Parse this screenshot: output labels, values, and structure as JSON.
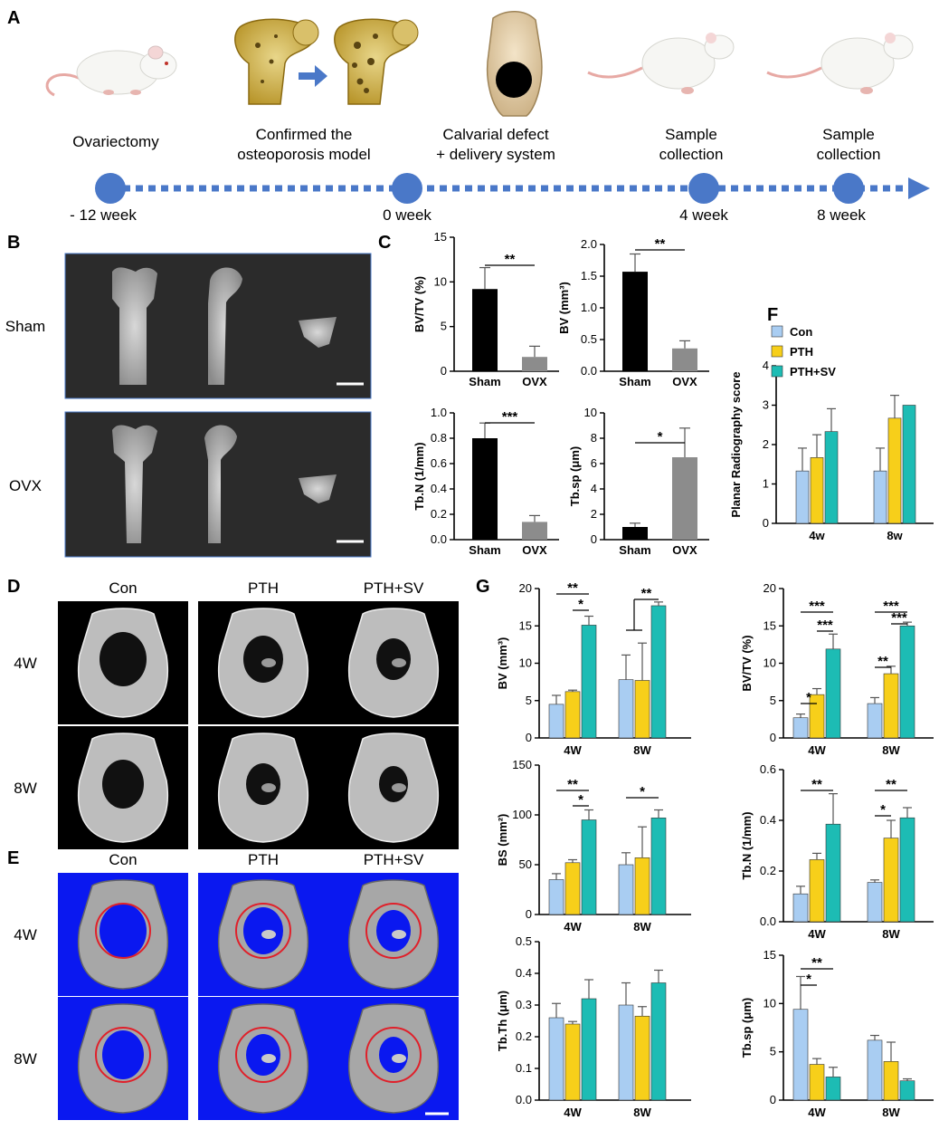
{
  "panel_labels": [
    "A",
    "B",
    "C",
    "D",
    "E",
    "F",
    "G"
  ],
  "colors": {
    "con": "#a9cdf2",
    "pth": "#f7cf1a",
    "pthsv": "#1dbcb4",
    "sham": "#000000",
    "ovx": "#8c8c8c",
    "timeline": "#4a78c8",
    "bluebg": "#0a18f0"
  },
  "timeline": {
    "events": [
      {
        "top": "Ovariectomy",
        "bottom": "- 12 week"
      },
      {
        "top": "Confirmed the\nosteoporosis model",
        "bottom": ""
      },
      {
        "top": "Calvarial defect\n+ delivery system",
        "bottom": "0 week"
      },
      {
        "top": "Sample\ncollection",
        "bottom": "4 week"
      },
      {
        "top": "Sample\ncollection",
        "bottom": "8 week"
      }
    ]
  },
  "panel_b": {
    "rows": [
      "Sham",
      "OVX"
    ]
  },
  "panel_de": {
    "cols": [
      "Con",
      "PTH",
      "PTH+SV"
    ],
    "rows": [
      "4W",
      "8W"
    ]
  },
  "chart_data": [
    {
      "id": "c1",
      "type": "bar",
      "categories": [
        "Sham",
        "OVX"
      ],
      "values": [
        9.2,
        1.6
      ],
      "errors": [
        2.4,
        1.2
      ],
      "ylabel": "BV/TV (%)",
      "ylim": [
        0,
        15
      ],
      "yticks": [
        0,
        5,
        10,
        15
      ],
      "sig": [
        {
          "from": 0,
          "to": 1,
          "label": "**"
        }
      ]
    },
    {
      "id": "c2",
      "type": "bar",
      "categories": [
        "Sham",
        "OVX"
      ],
      "values": [
        1.57,
        0.36
      ],
      "errors": [
        0.28,
        0.12
      ],
      "ylabel": "BV  (mm³)",
      "ylim": [
        0,
        2.0
      ],
      "yticks": [
        0.0,
        0.5,
        1.0,
        1.5,
        2.0
      ],
      "sig": [
        {
          "from": 0,
          "to": 1,
          "label": "**"
        }
      ]
    },
    {
      "id": "c3",
      "type": "bar",
      "categories": [
        "Sham",
        "OVX"
      ],
      "values": [
        0.8,
        0.14
      ],
      "errors": [
        0.12,
        0.05
      ],
      "ylabel": "Tb.N (1/mm)",
      "ylim": [
        0,
        1.0
      ],
      "yticks": [
        0.0,
        0.2,
        0.4,
        0.6,
        0.8,
        1.0
      ],
      "sig": [
        {
          "from": 0,
          "to": 1,
          "label": "***"
        }
      ]
    },
    {
      "id": "c4",
      "type": "bar",
      "categories": [
        "Sham",
        "OVX"
      ],
      "values": [
        1.0,
        6.5
      ],
      "errors": [
        0.3,
        2.3
      ],
      "ylabel": "Tb.sp (μm)",
      "ylim": [
        0,
        10
      ],
      "yticks": [
        0,
        2,
        4,
        6,
        8,
        10
      ],
      "sig": [
        {
          "from": 0,
          "to": 1,
          "label": "*"
        }
      ]
    },
    {
      "id": "f",
      "type": "bar",
      "categories": [
        "4w",
        "8w"
      ],
      "series": [
        {
          "name": "Con",
          "values": [
            1.33,
            1.33
          ],
          "errors": [
            0.58,
            0.58
          ]
        },
        {
          "name": "PTH",
          "values": [
            1.67,
            2.67
          ],
          "errors": [
            0.58,
            0.58
          ]
        },
        {
          "name": "PTH+SV",
          "values": [
            2.33,
            3.0
          ],
          "errors": [
            0.58,
            0
          ]
        }
      ],
      "ylabel": "Planar  Radiography score",
      "ylim": [
        0,
        4
      ],
      "yticks": [
        0,
        1,
        2,
        3,
        4
      ],
      "legend": "top-left"
    },
    {
      "id": "g1",
      "type": "bar",
      "categories": [
        "4W",
        "8W"
      ],
      "series": [
        {
          "name": "Con",
          "values": [
            4.5,
            7.8
          ],
          "errors": [
            1.2,
            3.3
          ]
        },
        {
          "name": "PTH",
          "values": [
            6.2,
            7.7
          ],
          "errors": [
            0.2,
            5.0
          ]
        },
        {
          "name": "PTH+SV",
          "values": [
            15.1,
            17.7
          ],
          "errors": [
            1.2,
            0.5
          ]
        }
      ],
      "ylabel": "BV  (mm³)",
      "ylim": [
        0,
        20
      ],
      "yticks": [
        0,
        5,
        10,
        15,
        20
      ]
    },
    {
      "id": "g2",
      "type": "bar",
      "categories": [
        "4W",
        "8W"
      ],
      "series": [
        {
          "name": "Con",
          "values": [
            2.7,
            4.6
          ],
          "errors": [
            0.5,
            0.8
          ]
        },
        {
          "name": "PTH",
          "values": [
            5.8,
            8.6
          ],
          "errors": [
            0.8,
            1.0
          ]
        },
        {
          "name": "PTH+SV",
          "values": [
            11.9,
            15.0
          ],
          "errors": [
            2.0,
            0.5
          ]
        }
      ],
      "ylabel": "BV/TV (%)",
      "ylim": [
        0,
        20
      ],
      "yticks": [
        0,
        5,
        10,
        15,
        20
      ]
    },
    {
      "id": "g3",
      "type": "bar",
      "categories": [
        "4W",
        "8W"
      ],
      "series": [
        {
          "name": "Con",
          "values": [
            35,
            50
          ],
          "errors": [
            6,
            12
          ]
        },
        {
          "name": "PTH",
          "values": [
            52,
            57
          ],
          "errors": [
            3,
            31
          ]
        },
        {
          "name": "PTH+SV",
          "values": [
            95,
            97
          ],
          "errors": [
            10,
            8
          ]
        }
      ],
      "ylabel": "BS  (mm²)",
      "ylim": [
        0,
        150
      ],
      "yticks": [
        0,
        50,
        100,
        150
      ]
    },
    {
      "id": "g4",
      "type": "bar",
      "categories": [
        "4W",
        "8W"
      ],
      "series": [
        {
          "name": "Con",
          "values": [
            0.11,
            0.155
          ],
          "errors": [
            0.03,
            0.01
          ]
        },
        {
          "name": "PTH",
          "values": [
            0.245,
            0.33
          ],
          "errors": [
            0.025,
            0.07
          ]
        },
        {
          "name": "PTH+SV",
          "values": [
            0.385,
            0.41
          ],
          "errors": [
            0.12,
            0.04
          ]
        }
      ],
      "ylabel": "Tb.N (1/mm)",
      "ylim": [
        0,
        0.6
      ],
      "yticks": [
        0.0,
        0.2,
        0.4,
        0.6
      ],
      "ytickfmt": 1
    },
    {
      "id": "g5",
      "type": "bar",
      "categories": [
        "4W",
        "8W"
      ],
      "series": [
        {
          "name": "Con",
          "values": [
            0.26,
            0.3
          ],
          "errors": [
            0.045,
            0.07
          ]
        },
        {
          "name": "PTH",
          "values": [
            0.24,
            0.265
          ],
          "errors": [
            0.008,
            0.03
          ]
        },
        {
          "name": "PTH+SV",
          "values": [
            0.32,
            0.37
          ],
          "errors": [
            0.06,
            0.04
          ]
        }
      ],
      "ylabel": "Tb.Th  (μm)",
      "ylim": [
        0,
        0.5
      ],
      "yticks": [
        0.0,
        0.1,
        0.2,
        0.3,
        0.4,
        0.5
      ]
    },
    {
      "id": "g6",
      "type": "bar",
      "categories": [
        "4W",
        "8W"
      ],
      "series": [
        {
          "name": "Con",
          "values": [
            9.4,
            6.2
          ],
          "errors": [
            3.4,
            0.5
          ]
        },
        {
          "name": "PTH",
          "values": [
            3.7,
            4.0
          ],
          "errors": [
            0.6,
            2.0
          ]
        },
        {
          "name": "PTH+SV",
          "values": [
            2.4,
            2.0
          ],
          "errors": [
            1.0,
            0.2
          ]
        }
      ],
      "ylabel": "Tb.sp  (μm)",
      "ylim": [
        0,
        15
      ],
      "yticks": [
        0,
        5,
        10,
        15
      ]
    }
  ],
  "sig_g": {
    "g1": [
      {
        "label": "**"
      },
      {
        "label": "*"
      },
      {
        "label": "**"
      }
    ],
    "g2": [
      {
        "label": "***"
      },
      {
        "label": "***"
      },
      {
        "label": "*"
      },
      {
        "label": "***"
      },
      {
        "label": "***"
      },
      {
        "label": "**"
      }
    ],
    "g3": [
      {
        "label": "**"
      },
      {
        "label": "*"
      },
      {
        "label": "*"
      }
    ],
    "g4": [
      {
        "label": "**"
      },
      {
        "label": "**"
      },
      {
        "label": "*"
      }
    ],
    "g6": [
      {
        "label": "**"
      },
      {
        "label": "*"
      }
    ]
  }
}
